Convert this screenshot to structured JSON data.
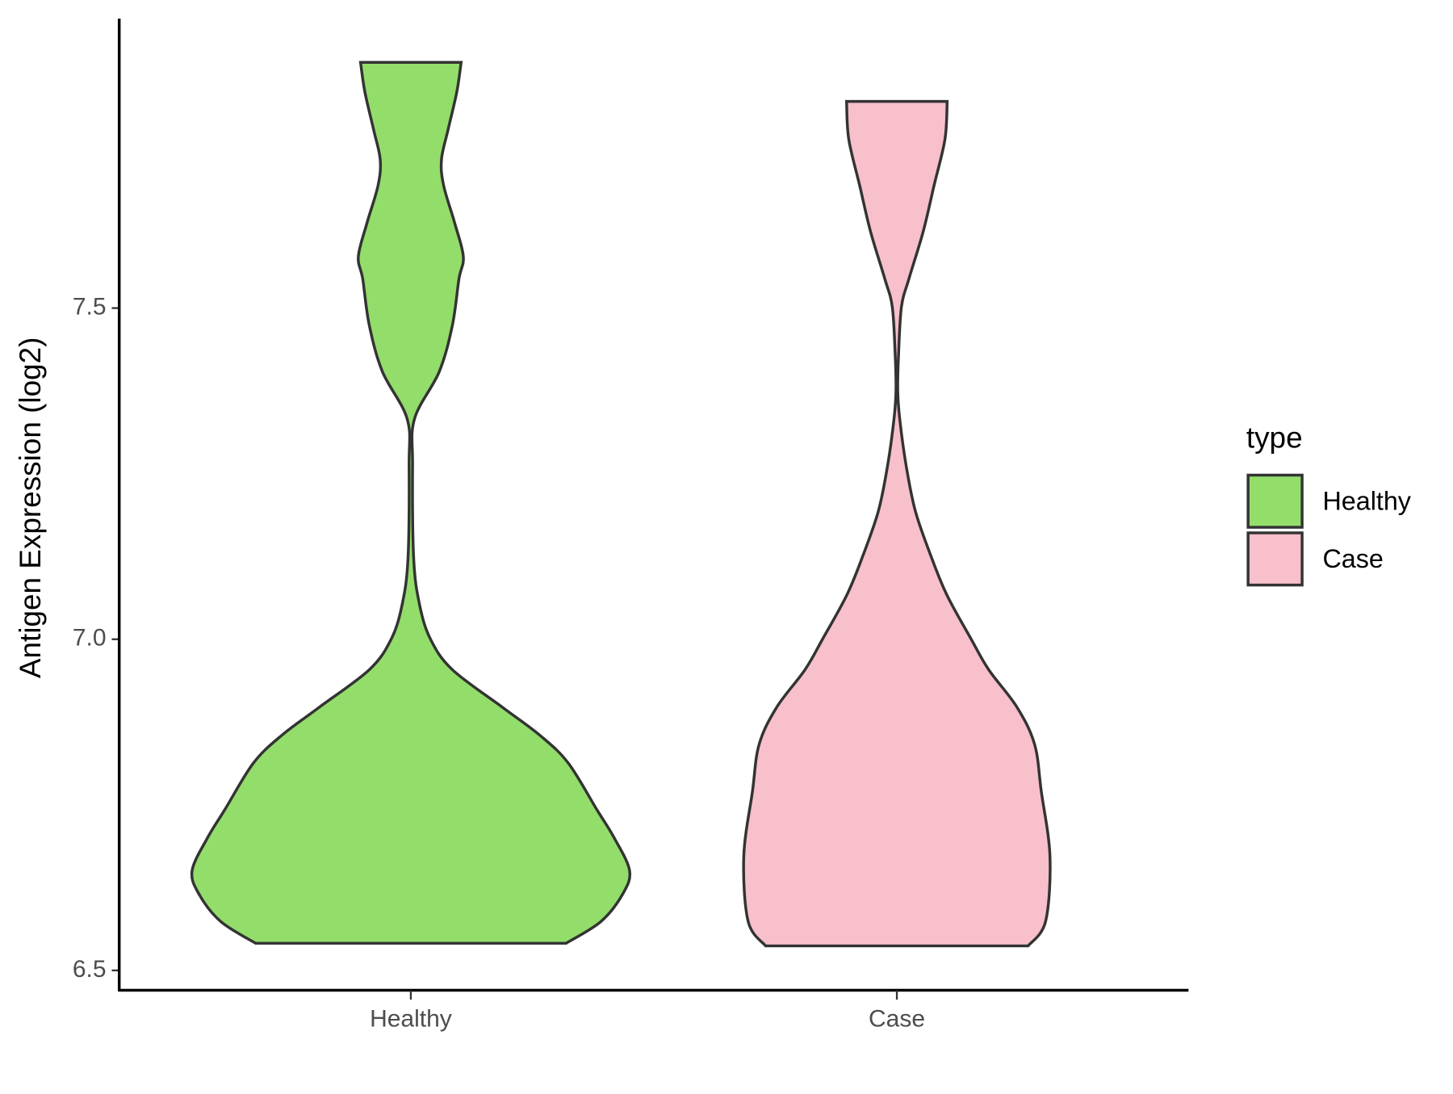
{
  "chart_data": {
    "type": "violin",
    "y_label": "Antigen Expression (log2)",
    "categories": [
      "Healthy",
      "Case"
    ],
    "legend_title": "type",
    "legend_position": "right",
    "ylim": [
      6.47,
      7.937
    ],
    "yticks": [
      6.5,
      {
        "value": 7,
        "label": "7.0"
      },
      7.5
    ],
    "series": [
      {
        "name": "Healthy",
        "color": "#93dd6b",
        "y": [
          6.541,
          6.574,
          6.616,
          6.651,
          6.7,
          6.743,
          6.813,
          6.855,
          6.897,
          6.954,
          7,
          7.052,
          7.122,
          7.263,
          7.333,
          7.404,
          7.474,
          7.544,
          7.578,
          7.629,
          7.685,
          7.724,
          7.769,
          7.826,
          7.871
        ],
        "density": [
          0.71,
          0.87,
          0.97,
          1,
          0.93,
          0.85,
          0.72,
          0.59,
          0.42,
          0.19,
          0.09,
          0.04,
          0.013,
          0.008,
          0.017,
          0.13,
          0.19,
          0.22,
          0.24,
          0.2,
          0.15,
          0.14,
          0.17,
          0.21,
          0.23
        ]
      },
      {
        "name": "Case",
        "color": "#f7c0cb",
        "y": [
          6.537,
          6.574,
          6.672,
          6.771,
          6.841,
          6.897,
          6.954,
          7,
          7.066,
          7.122,
          7.193,
          7.263,
          7.333,
          7.376,
          7.432,
          7.502,
          7.544,
          7.615,
          7.685,
          7.755,
          7.812
        ],
        "density": [
          0.6,
          0.68,
          0.7,
          0.66,
          0.63,
          0.55,
          0.42,
          0.34,
          0.23,
          0.16,
          0.085,
          0.042,
          0.013,
          0.004,
          0.008,
          0.021,
          0.055,
          0.12,
          0.17,
          0.22,
          0.23
        ]
      }
    ]
  }
}
